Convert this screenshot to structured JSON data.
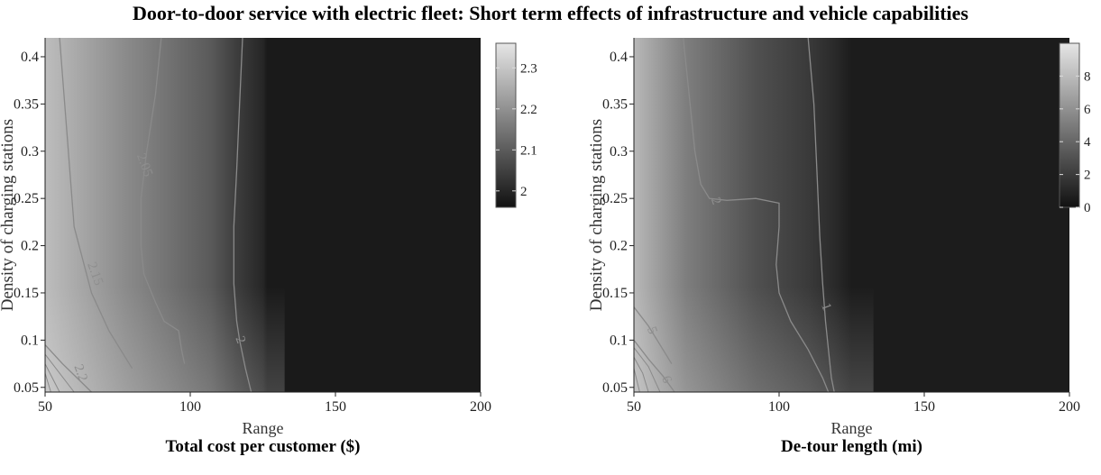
{
  "title": "Door-to-door service with electric fleet: Short term effects of infrastructure and vehicle capabilities",
  "chart_data": [
    {
      "type": "heatmap",
      "xlabel": "Range",
      "ylabel": "Density of charging stations",
      "subtitle": "Total cost per customer ($)",
      "xlim": [
        50,
        200
      ],
      "ylim": [
        0.045,
        0.42
      ],
      "xticks": [
        50,
        100,
        150,
        200
      ],
      "xtick_labels": [
        "50",
        "100",
        "150",
        "200"
      ],
      "yticks": [
        0.05,
        0.1,
        0.15,
        0.2,
        0.25,
        0.3,
        0.35,
        0.4
      ],
      "ytick_labels": [
        "0.05",
        "0.1",
        "0.15",
        "0.2",
        "0.25",
        "0.3",
        "0.35",
        "0.4"
      ],
      "colorbar": {
        "range": [
          1.96,
          2.36
        ],
        "ticks": [
          2.0,
          2.1,
          2.2,
          2.3
        ],
        "tick_labels": [
          "2",
          "2.1",
          "2.2",
          "2.3"
        ]
      },
      "contours": [
        {
          "label": "2.05",
          "label_at": [
            84,
            0.285
          ],
          "points": [
            [
              90,
              0.42
            ],
            [
              88,
              0.36
            ],
            [
              85,
              0.3
            ],
            [
              83,
              0.25
            ],
            [
              83,
              0.2
            ],
            [
              84,
              0.17
            ],
            [
              88,
              0.14
            ],
            [
              91,
              0.12
            ],
            [
              96,
              0.11
            ],
            [
              97,
              0.09
            ],
            [
              98,
              0.075
            ]
          ]
        },
        {
          "label": "2",
          "label_at": [
            117,
            0.1
          ],
          "points": [
            [
              118,
              0.42
            ],
            [
              117,
              0.35
            ],
            [
              116,
              0.28
            ],
            [
              115,
              0.22
            ],
            [
              115,
              0.16
            ],
            [
              116,
              0.12
            ],
            [
              117,
              0.1
            ],
            [
              119,
              0.07
            ],
            [
              121,
              0.045
            ]
          ]
        },
        {
          "label": "2.15",
          "label_at": [
            67,
            0.17
          ],
          "points": [
            [
              55,
              0.42
            ],
            [
              58,
              0.3
            ],
            [
              60,
              0.22
            ],
            [
              66,
              0.15
            ],
            [
              72,
              0.11
            ],
            [
              77,
              0.085
            ],
            [
              80,
              0.07
            ]
          ]
        },
        {
          "label": "2.2",
          "label_at": [
            62,
            0.065
          ],
          "points": [
            [
              50,
              0.095
            ],
            [
              56,
              0.075
            ],
            [
              62,
              0.057
            ],
            [
              66,
              0.045
            ]
          ]
        }
      ],
      "extra_contours": [
        [
          [
            50,
            0.085
          ],
          [
            60,
            0.045
          ]
        ],
        [
          [
            50,
            0.075
          ],
          [
            55,
            0.045
          ]
        ],
        [
          [
            50,
            0.065
          ],
          [
            52,
            0.045
          ]
        ]
      ]
    },
    {
      "type": "heatmap",
      "xlabel": "Range",
      "ylabel": "Density of charging stations",
      "subtitle": "De-tour length (mi)",
      "xlim": [
        50,
        200
      ],
      "ylim": [
        0.045,
        0.42
      ],
      "xticks": [
        50,
        100,
        150,
        200
      ],
      "xtick_labels": [
        "50",
        "100",
        "150",
        "200"
      ],
      "yticks": [
        0.05,
        0.1,
        0.15,
        0.2,
        0.25,
        0.3,
        0.35,
        0.4
      ],
      "ytick_labels": [
        "0.05",
        "0.1",
        "0.15",
        "0.2",
        "0.25",
        "0.3",
        "0.35",
        "0.4"
      ],
      "colorbar": {
        "range": [
          0,
          10
        ],
        "ticks": [
          0,
          2,
          4,
          6,
          8
        ],
        "tick_labels": [
          "0",
          "2",
          "4",
          "6",
          "8"
        ]
      },
      "contours": [
        {
          "label": "2",
          "label_at": [
            78,
            0.247
          ],
          "points": [
            [
              67,
              0.42
            ],
            [
              69,
              0.36
            ],
            [
              71,
              0.3
            ],
            [
              73,
              0.265
            ],
            [
              76,
              0.25
            ],
            [
              82,
              0.248
            ],
            [
              92,
              0.25
            ],
            [
              100,
              0.245
            ],
            [
              100,
              0.22
            ],
            [
              99,
              0.18
            ],
            [
              100,
              0.15
            ],
            [
              104,
              0.12
            ],
            [
              110,
              0.09
            ],
            [
              115,
              0.06
            ],
            [
              117,
              0.045
            ]
          ]
        },
        {
          "label": "1",
          "label_at": [
            116,
            0.135
          ],
          "points": [
            [
              110,
              0.42
            ],
            [
              112,
              0.35
            ],
            [
              113,
              0.28
            ],
            [
              114,
              0.21
            ],
            [
              115,
              0.16
            ],
            [
              116,
              0.12
            ],
            [
              117,
              0.09
            ],
            [
              118,
              0.06
            ],
            [
              119,
              0.045
            ]
          ]
        },
        {
          "label": "5",
          "label_at": [
            56,
            0.11
          ],
          "points": [
            [
              50,
              0.135
            ],
            [
              55,
              0.115
            ],
            [
              60,
              0.09
            ],
            [
              63,
              0.075
            ]
          ]
        },
        {
          "label": "6",
          "label_at": [
            61,
            0.058
          ],
          "points": [
            [
              50,
              0.1
            ],
            [
              55,
              0.08
            ],
            [
              60,
              0.062
            ],
            [
              64,
              0.045
            ]
          ]
        }
      ],
      "extra_contours": [
        [
          [
            50,
            0.092
          ],
          [
            55,
            0.072
          ],
          [
            59,
            0.045
          ]
        ],
        [
          [
            50,
            0.082
          ],
          [
            53,
            0.065
          ],
          [
            55,
            0.045
          ]
        ],
        [
          [
            50,
            0.07
          ],
          [
            52,
            0.045
          ]
        ]
      ]
    }
  ]
}
